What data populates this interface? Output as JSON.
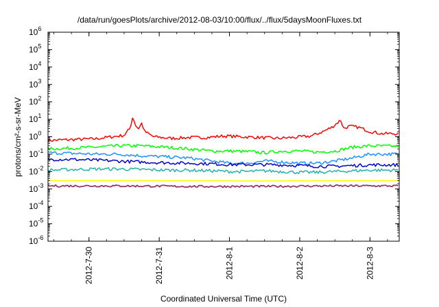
{
  "chart_data": {
    "type": "line",
    "title": "/data/run/goesPlots/archive/2012-08-03/10:00/flux/../flux/5daysMoonFluxes.txt",
    "xlabel": "Coordinated Universal Time (UTC)",
    "ylabel": "protons/cm²-s-sr-MeV",
    "y_scale": "log",
    "ylim": [
      1e-06,
      1000000.0
    ],
    "yticks": [
      "10-6",
      "10-5",
      "10-4",
      "10-3",
      "10-2",
      "10-1",
      "100",
      "101",
      "102",
      "103",
      "104",
      "105",
      "106"
    ],
    "xlim": [
      "2012-07-29T10:00",
      "2012-08-03T10:00"
    ],
    "xticks": [
      {
        "label": "2012-7-30",
        "date": "2012-07-30T00:00"
      },
      {
        "label": "2012-7-31",
        "date": "2012-07-31T00:00"
      },
      {
        "label": "2012-8-1",
        "date": "2012-08-01T00:00"
      },
      {
        "label": "2012-8-2",
        "date": "2012-08-02T00:00"
      },
      {
        "label": "2012-8-3",
        "date": "2012-08-03T00:00"
      }
    ],
    "grid": false,
    "legend": "none",
    "series": [
      {
        "color": "#ff0000",
        "x": [
          "2012-07-29T10:00",
          "2012-07-29T14:00",
          "2012-07-29T20:00",
          "2012-07-30T02:00",
          "2012-07-30T08:00",
          "2012-07-30T12:00",
          "2012-07-30T14:00",
          "2012-07-30T15:00",
          "2012-07-30T16:00",
          "2012-07-30T17:00",
          "2012-07-30T18:00",
          "2012-07-30T19:00",
          "2012-07-30T22:00",
          "2012-07-31T04:00",
          "2012-07-31T10:00",
          "2012-07-31T16:00",
          "2012-07-31T22:00",
          "2012-08-01T04:00",
          "2012-08-01T10:00",
          "2012-08-01T16:00",
          "2012-08-01T22:00",
          "2012-08-02T04:00",
          "2012-08-02T08:00",
          "2012-08-02T11:00",
          "2012-08-02T14:00",
          "2012-08-02T15:00",
          "2012-08-02T17:00",
          "2012-08-02T20:00",
          "2012-08-03T00:00",
          "2012-08-03T04:00",
          "2012-08-03T10:00"
        ],
        "y": [
          0.6,
          0.65,
          0.7,
          0.75,
          1.0,
          1.2,
          3.0,
          15.0,
          4.0,
          3.0,
          6.0,
          2.0,
          1.0,
          0.8,
          0.9,
          0.9,
          1.1,
          1.0,
          0.9,
          0.8,
          0.9,
          1.1,
          2.0,
          3.5,
          9.0,
          3.0,
          4.0,
          3.5,
          2.0,
          1.5,
          1.5
        ]
      },
      {
        "color": "#00ff00",
        "x": [
          "2012-07-29T10:00",
          "2012-07-29T18:00",
          "2012-07-30T02:00",
          "2012-07-30T10:00",
          "2012-07-30T18:00",
          "2012-07-31T02:00",
          "2012-07-31T10:00",
          "2012-07-31T18:00",
          "2012-08-01T00:00",
          "2012-08-01T06:00",
          "2012-08-01T12:00",
          "2012-08-01T18:00",
          "2012-08-02T00:00",
          "2012-08-02T06:00",
          "2012-08-02T12:00",
          "2012-08-02T18:00",
          "2012-08-03T00:00",
          "2012-08-03T10:00"
        ],
        "y": [
          0.2,
          0.22,
          0.25,
          0.3,
          0.3,
          0.25,
          0.2,
          0.15,
          0.15,
          0.14,
          0.12,
          0.15,
          0.15,
          0.13,
          0.15,
          0.25,
          0.3,
          0.28
        ]
      },
      {
        "color": "#1e90ff",
        "x": [
          "2012-07-29T10:00",
          "2012-07-29T18:00",
          "2012-07-30T02:00",
          "2012-07-30T10:00",
          "2012-07-30T18:00",
          "2012-07-31T02:00",
          "2012-07-31T10:00",
          "2012-07-31T18:00",
          "2012-08-01T00:00",
          "2012-08-01T06:00",
          "2012-08-01T12:00",
          "2012-08-01T18:00",
          "2012-08-02T00:00",
          "2012-08-02T06:00",
          "2012-08-02T12:00",
          "2012-08-02T18:00",
          "2012-08-03T00:00",
          "2012-08-03T10:00"
        ],
        "y": [
          0.12,
          0.11,
          0.1,
          0.1,
          0.08,
          0.07,
          0.06,
          0.04,
          0.03,
          0.03,
          0.04,
          0.035,
          0.03,
          0.03,
          0.04,
          0.06,
          0.1,
          0.1
        ]
      },
      {
        "color": "#0000cc",
        "x": [
          "2012-07-29T10:00",
          "2012-07-29T18:00",
          "2012-07-30T02:00",
          "2012-07-30T10:00",
          "2012-07-30T18:00",
          "2012-07-31T02:00",
          "2012-07-31T10:00",
          "2012-07-31T18:00",
          "2012-08-01T00:00",
          "2012-08-01T06:00",
          "2012-08-01T12:00",
          "2012-08-01T18:00",
          "2012-08-02T00:00",
          "2012-08-02T06:00",
          "2012-08-02T12:00",
          "2012-08-02T18:00",
          "2012-08-03T00:00",
          "2012-08-03T10:00"
        ],
        "y": [
          0.05,
          0.05,
          0.045,
          0.04,
          0.035,
          0.032,
          0.03,
          0.028,
          0.025,
          0.025,
          0.025,
          0.024,
          0.022,
          0.02,
          0.02,
          0.022,
          0.024,
          0.024
        ]
      },
      {
        "color": "#20b2aa",
        "x": [
          "2012-07-29T10:00",
          "2012-07-29T18:00",
          "2012-07-30T02:00",
          "2012-07-30T10:00",
          "2012-07-30T18:00",
          "2012-07-31T02:00",
          "2012-07-31T10:00",
          "2012-07-31T18:00",
          "2012-08-01T00:00",
          "2012-08-01T06:00",
          "2012-08-01T12:00",
          "2012-08-01T18:00",
          "2012-08-02T00:00",
          "2012-08-02T06:00",
          "2012-08-02T12:00",
          "2012-08-02T18:00",
          "2012-08-03T00:00",
          "2012-08-03T10:00"
        ],
        "y": [
          0.012,
          0.013,
          0.014,
          0.014,
          0.013,
          0.012,
          0.012,
          0.011,
          0.01,
          0.01,
          0.011,
          0.01,
          0.009,
          0.009,
          0.01,
          0.011,
          0.012,
          0.012
        ]
      },
      {
        "color": "#ffff00",
        "x": [
          "2012-07-29T10:00",
          "2012-07-30T10:00",
          "2012-07-31T10:00",
          "2012-08-01T10:00",
          "2012-08-02T10:00",
          "2012-08-03T10:00"
        ],
        "y": [
          0.003,
          0.0031,
          0.003,
          0.0029,
          0.003,
          0.003
        ]
      },
      {
        "color": "#993366",
        "x": [
          "2012-07-29T10:00",
          "2012-07-30T10:00",
          "2012-07-31T10:00",
          "2012-08-01T10:00",
          "2012-08-02T10:00",
          "2012-08-03T10:00"
        ],
        "y": [
          0.0015,
          0.0015,
          0.0014,
          0.0014,
          0.0015,
          0.0015
        ]
      }
    ]
  }
}
